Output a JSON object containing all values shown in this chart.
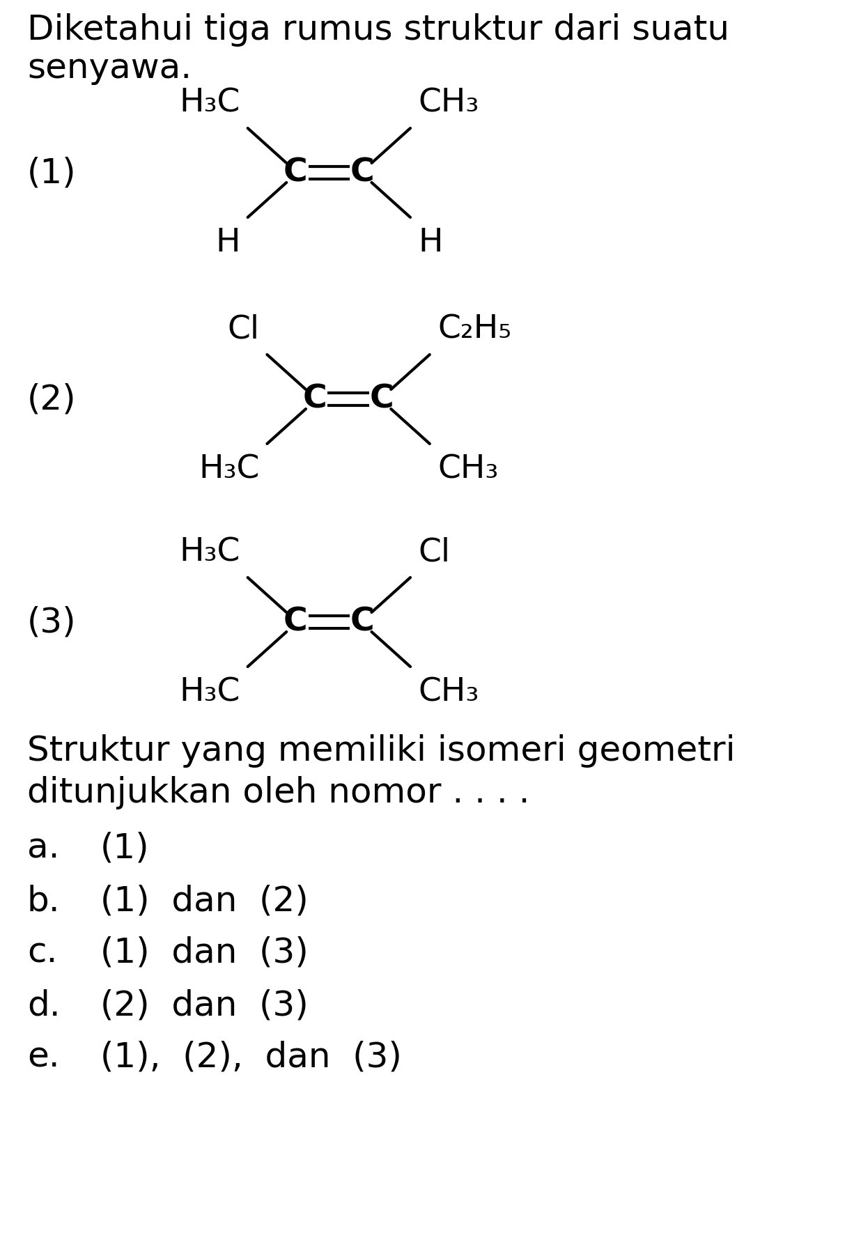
{
  "title_line1": "Diketahui tiga rumus struktur dari suatu",
  "title_line2": "senyawa.",
  "bg_color": "#ffffff",
  "text_color": "#000000",
  "font_size_main": 36,
  "font_size_chem": 34,
  "font_size_label": 36,
  "question_line1": "Struktur yang memiliki isomeri geometri",
  "question_line2": "ditunjukkan oleh nomor . . . .",
  "choices": [
    [
      "a.",
      "(1)"
    ],
    [
      "b.",
      "(1)  dan  (2)"
    ],
    [
      "c.",
      "(1)  dan  (3)"
    ],
    [
      "d.",
      "(2)  dan  (3)"
    ],
    [
      "e.",
      "(1),  (2),  dan  (3)"
    ]
  ],
  "struct1": {
    "label": "(1)",
    "UL": "H₃C",
    "UR": "CH₃",
    "LL": "H",
    "LR": "H"
  },
  "struct2": {
    "label": "(2)",
    "UL": "Cl",
    "UR": "C₂H₅",
    "LL": "H₃C",
    "LR": "CH₃"
  },
  "struct3": {
    "label": "(3)",
    "UL": "H₃C",
    "UR": "Cl",
    "LL": "H₃C",
    "LR": "CH₃"
  }
}
